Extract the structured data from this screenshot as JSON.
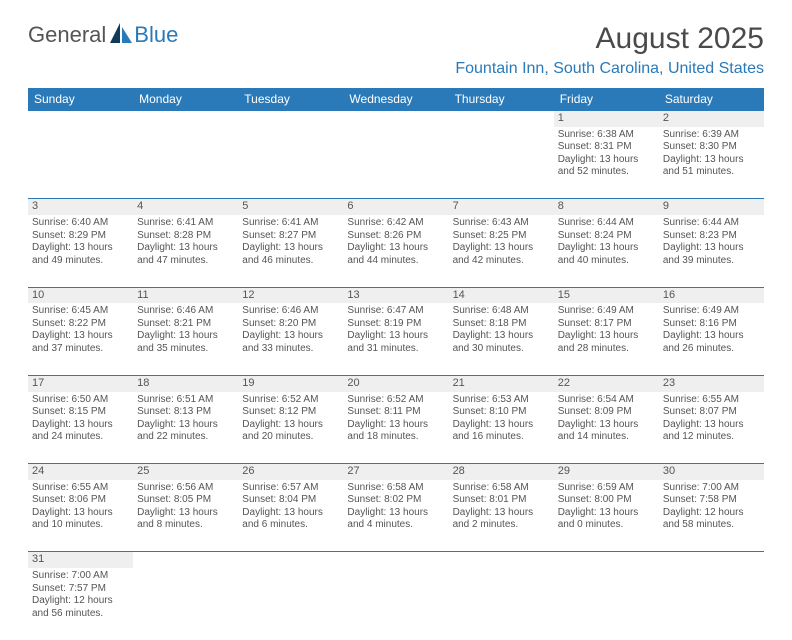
{
  "brand": {
    "part1": "General",
    "part2": "Blue"
  },
  "title": "August 2025",
  "location": "Fountain Inn, South Carolina, United States",
  "colors": {
    "accent": "#2a7ab9",
    "headerBg": "#2a7ab9",
    "dayBg": "#efefef",
    "text": "#555"
  },
  "dayNames": [
    "Sunday",
    "Monday",
    "Tuesday",
    "Wednesday",
    "Thursday",
    "Friday",
    "Saturday"
  ],
  "weeks": [
    [
      null,
      null,
      null,
      null,
      null,
      {
        "n": "1",
        "r": "Sunrise: 6:38 AM",
        "s": "Sunset: 8:31 PM",
        "d": "Daylight: 13 hours and 52 minutes."
      },
      {
        "n": "2",
        "r": "Sunrise: 6:39 AM",
        "s": "Sunset: 8:30 PM",
        "d": "Daylight: 13 hours and 51 minutes."
      }
    ],
    [
      {
        "n": "3",
        "r": "Sunrise: 6:40 AM",
        "s": "Sunset: 8:29 PM",
        "d": "Daylight: 13 hours and 49 minutes."
      },
      {
        "n": "4",
        "r": "Sunrise: 6:41 AM",
        "s": "Sunset: 8:28 PM",
        "d": "Daylight: 13 hours and 47 minutes."
      },
      {
        "n": "5",
        "r": "Sunrise: 6:41 AM",
        "s": "Sunset: 8:27 PM",
        "d": "Daylight: 13 hours and 46 minutes."
      },
      {
        "n": "6",
        "r": "Sunrise: 6:42 AM",
        "s": "Sunset: 8:26 PM",
        "d": "Daylight: 13 hours and 44 minutes."
      },
      {
        "n": "7",
        "r": "Sunrise: 6:43 AM",
        "s": "Sunset: 8:25 PM",
        "d": "Daylight: 13 hours and 42 minutes."
      },
      {
        "n": "8",
        "r": "Sunrise: 6:44 AM",
        "s": "Sunset: 8:24 PM",
        "d": "Daylight: 13 hours and 40 minutes."
      },
      {
        "n": "9",
        "r": "Sunrise: 6:44 AM",
        "s": "Sunset: 8:23 PM",
        "d": "Daylight: 13 hours and 39 minutes."
      }
    ],
    [
      {
        "n": "10",
        "r": "Sunrise: 6:45 AM",
        "s": "Sunset: 8:22 PM",
        "d": "Daylight: 13 hours and 37 minutes."
      },
      {
        "n": "11",
        "r": "Sunrise: 6:46 AM",
        "s": "Sunset: 8:21 PM",
        "d": "Daylight: 13 hours and 35 minutes."
      },
      {
        "n": "12",
        "r": "Sunrise: 6:46 AM",
        "s": "Sunset: 8:20 PM",
        "d": "Daylight: 13 hours and 33 minutes."
      },
      {
        "n": "13",
        "r": "Sunrise: 6:47 AM",
        "s": "Sunset: 8:19 PM",
        "d": "Daylight: 13 hours and 31 minutes."
      },
      {
        "n": "14",
        "r": "Sunrise: 6:48 AM",
        "s": "Sunset: 8:18 PM",
        "d": "Daylight: 13 hours and 30 minutes."
      },
      {
        "n": "15",
        "r": "Sunrise: 6:49 AM",
        "s": "Sunset: 8:17 PM",
        "d": "Daylight: 13 hours and 28 minutes."
      },
      {
        "n": "16",
        "r": "Sunrise: 6:49 AM",
        "s": "Sunset: 8:16 PM",
        "d": "Daylight: 13 hours and 26 minutes."
      }
    ],
    [
      {
        "n": "17",
        "r": "Sunrise: 6:50 AM",
        "s": "Sunset: 8:15 PM",
        "d": "Daylight: 13 hours and 24 minutes."
      },
      {
        "n": "18",
        "r": "Sunrise: 6:51 AM",
        "s": "Sunset: 8:13 PM",
        "d": "Daylight: 13 hours and 22 minutes."
      },
      {
        "n": "19",
        "r": "Sunrise: 6:52 AM",
        "s": "Sunset: 8:12 PM",
        "d": "Daylight: 13 hours and 20 minutes."
      },
      {
        "n": "20",
        "r": "Sunrise: 6:52 AM",
        "s": "Sunset: 8:11 PM",
        "d": "Daylight: 13 hours and 18 minutes."
      },
      {
        "n": "21",
        "r": "Sunrise: 6:53 AM",
        "s": "Sunset: 8:10 PM",
        "d": "Daylight: 13 hours and 16 minutes."
      },
      {
        "n": "22",
        "r": "Sunrise: 6:54 AM",
        "s": "Sunset: 8:09 PM",
        "d": "Daylight: 13 hours and 14 minutes."
      },
      {
        "n": "23",
        "r": "Sunrise: 6:55 AM",
        "s": "Sunset: 8:07 PM",
        "d": "Daylight: 13 hours and 12 minutes."
      }
    ],
    [
      {
        "n": "24",
        "r": "Sunrise: 6:55 AM",
        "s": "Sunset: 8:06 PM",
        "d": "Daylight: 13 hours and 10 minutes."
      },
      {
        "n": "25",
        "r": "Sunrise: 6:56 AM",
        "s": "Sunset: 8:05 PM",
        "d": "Daylight: 13 hours and 8 minutes."
      },
      {
        "n": "26",
        "r": "Sunrise: 6:57 AM",
        "s": "Sunset: 8:04 PM",
        "d": "Daylight: 13 hours and 6 minutes."
      },
      {
        "n": "27",
        "r": "Sunrise: 6:58 AM",
        "s": "Sunset: 8:02 PM",
        "d": "Daylight: 13 hours and 4 minutes."
      },
      {
        "n": "28",
        "r": "Sunrise: 6:58 AM",
        "s": "Sunset: 8:01 PM",
        "d": "Daylight: 13 hours and 2 minutes."
      },
      {
        "n": "29",
        "r": "Sunrise: 6:59 AM",
        "s": "Sunset: 8:00 PM",
        "d": "Daylight: 13 hours and 0 minutes."
      },
      {
        "n": "30",
        "r": "Sunrise: 7:00 AM",
        "s": "Sunset: 7:58 PM",
        "d": "Daylight: 12 hours and 58 minutes."
      }
    ],
    [
      {
        "n": "31",
        "r": "Sunrise: 7:00 AM",
        "s": "Sunset: 7:57 PM",
        "d": "Daylight: 12 hours and 56 minutes."
      },
      null,
      null,
      null,
      null,
      null,
      null
    ]
  ]
}
